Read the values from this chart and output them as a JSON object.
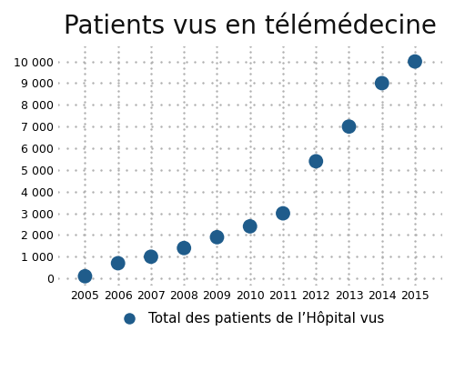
{
  "title": "Patients vus en télémédecine",
  "years": [
    2005,
    2006,
    2007,
    2008,
    2009,
    2010,
    2011,
    2012,
    2013,
    2014,
    2015
  ],
  "values": [
    100,
    700,
    1000,
    1400,
    1900,
    2400,
    3000,
    5400,
    7000,
    9000,
    10000
  ],
  "dot_color": "#1f5c8b",
  "grid_dot_color": "#b0b0b0",
  "background_color": "#ffffff",
  "legend_label": "Total des patients de l’Hôpital vus",
  "yticks": [
    0,
    1000,
    2000,
    3000,
    4000,
    5000,
    6000,
    7000,
    8000,
    9000,
    10000
  ],
  "ytick_labels": [
    "0",
    "1 000",
    "2 000",
    "3 000",
    "4 000",
    "5 000",
    "6 000",
    "7 000",
    "8 000",
    "9 000",
    "10 000"
  ],
  "xlim": [
    2004.2,
    2015.8
  ],
  "ylim": [
    -300,
    10700
  ],
  "data_marker_size": 130,
  "grid_dot_size": 3.5,
  "grid_cols": 46,
  "grid_rows": 44,
  "title_fontsize": 20,
  "axis_fontsize": 9,
  "legend_fontsize": 11,
  "legend_marker_size": 10
}
